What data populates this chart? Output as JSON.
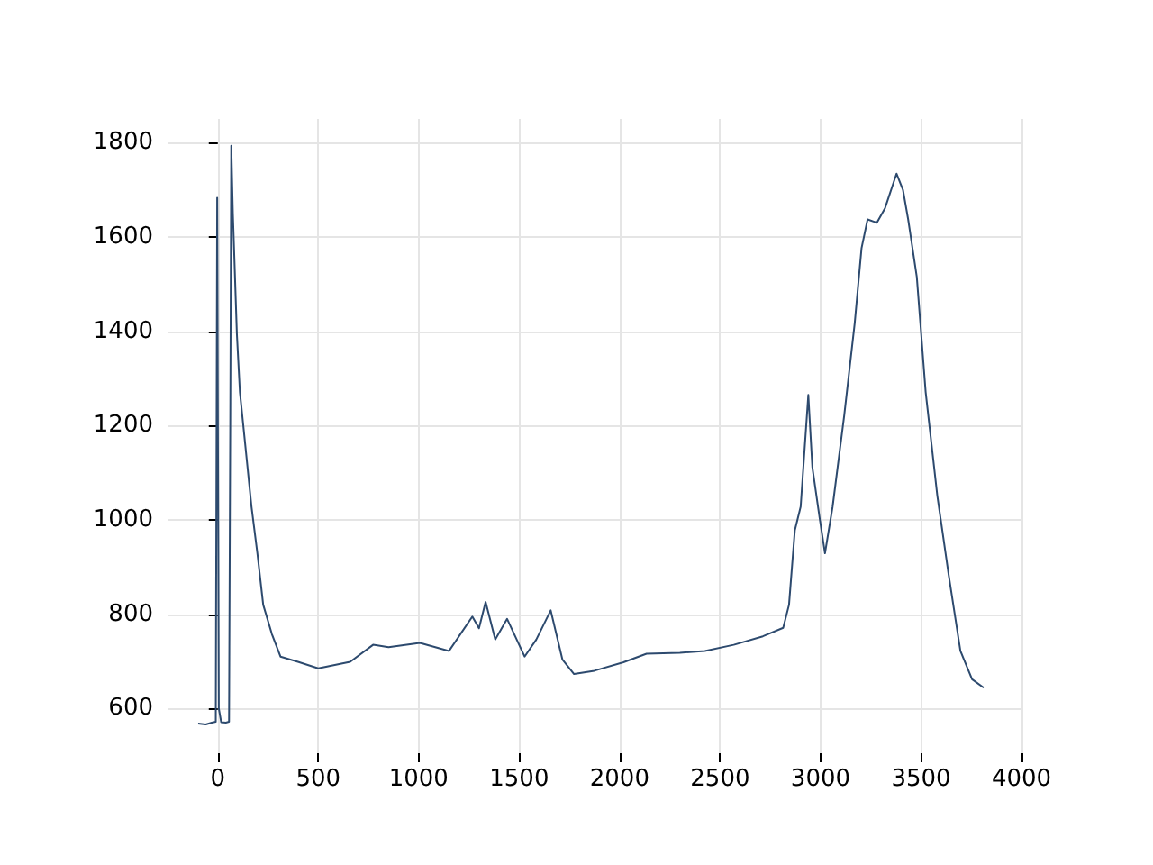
{
  "chart_data": {
    "type": "line",
    "x": [
      -98,
      -60,
      -30,
      -10,
      -3,
      5,
      17,
      40,
      56,
      62,
      67,
      75,
      95,
      110,
      139,
      168,
      197,
      226,
      269,
      312,
      399,
      500,
      659,
      773,
      850,
      1006,
      1151,
      1267,
      1300,
      1333,
      1381,
      1440,
      1527,
      1585,
      1657,
      1715,
      1773,
      1874,
      2019,
      2134,
      2300,
      2424,
      2568,
      2713,
      2814,
      2843,
      2872,
      2901,
      2939,
      2959,
      2996,
      3022,
      3060,
      3118,
      3170,
      3204,
      3234,
      3280,
      3321,
      3378,
      3410,
      3436,
      3479,
      3523,
      3581,
      3638,
      3696,
      3754,
      3812
    ],
    "series": [
      {
        "color": "#2d4a6e",
        "values": [
          568,
          566,
          570,
          572,
          1683,
          600,
          571,
          570,
          572,
          1200,
          1793,
          1650,
          1394,
          1271,
          1149,
          1027,
          929,
          820,
          758,
          710,
          699,
          685,
          699,
          735,
          730,
          739,
          722,
          795,
          770,
          826,
          746,
          790,
          710,
          746,
          808,
          704,
          673,
          680,
          698,
          716,
          718,
          722,
          735,
          753,
          771,
          820,
          978,
          1028,
          1265,
          1112,
          1002,
          929,
          1028,
          1222,
          1417,
          1576,
          1637,
          1630,
          1661,
          1734,
          1700,
          1637,
          1515,
          1271,
          1051,
          882,
          722,
          662,
          644
        ]
      }
    ],
    "xlim": [
      -250,
      4000
    ],
    "ylim": [
      505,
      1850
    ],
    "xticks": [
      0,
      500,
      1000,
      1500,
      2000,
      2500,
      3000,
      3500,
      4000
    ],
    "yticks": [
      600,
      800,
      1000,
      1200,
      1400,
      1600,
      1800
    ],
    "grid": true,
    "marker": "none",
    "line_style": "solid"
  }
}
